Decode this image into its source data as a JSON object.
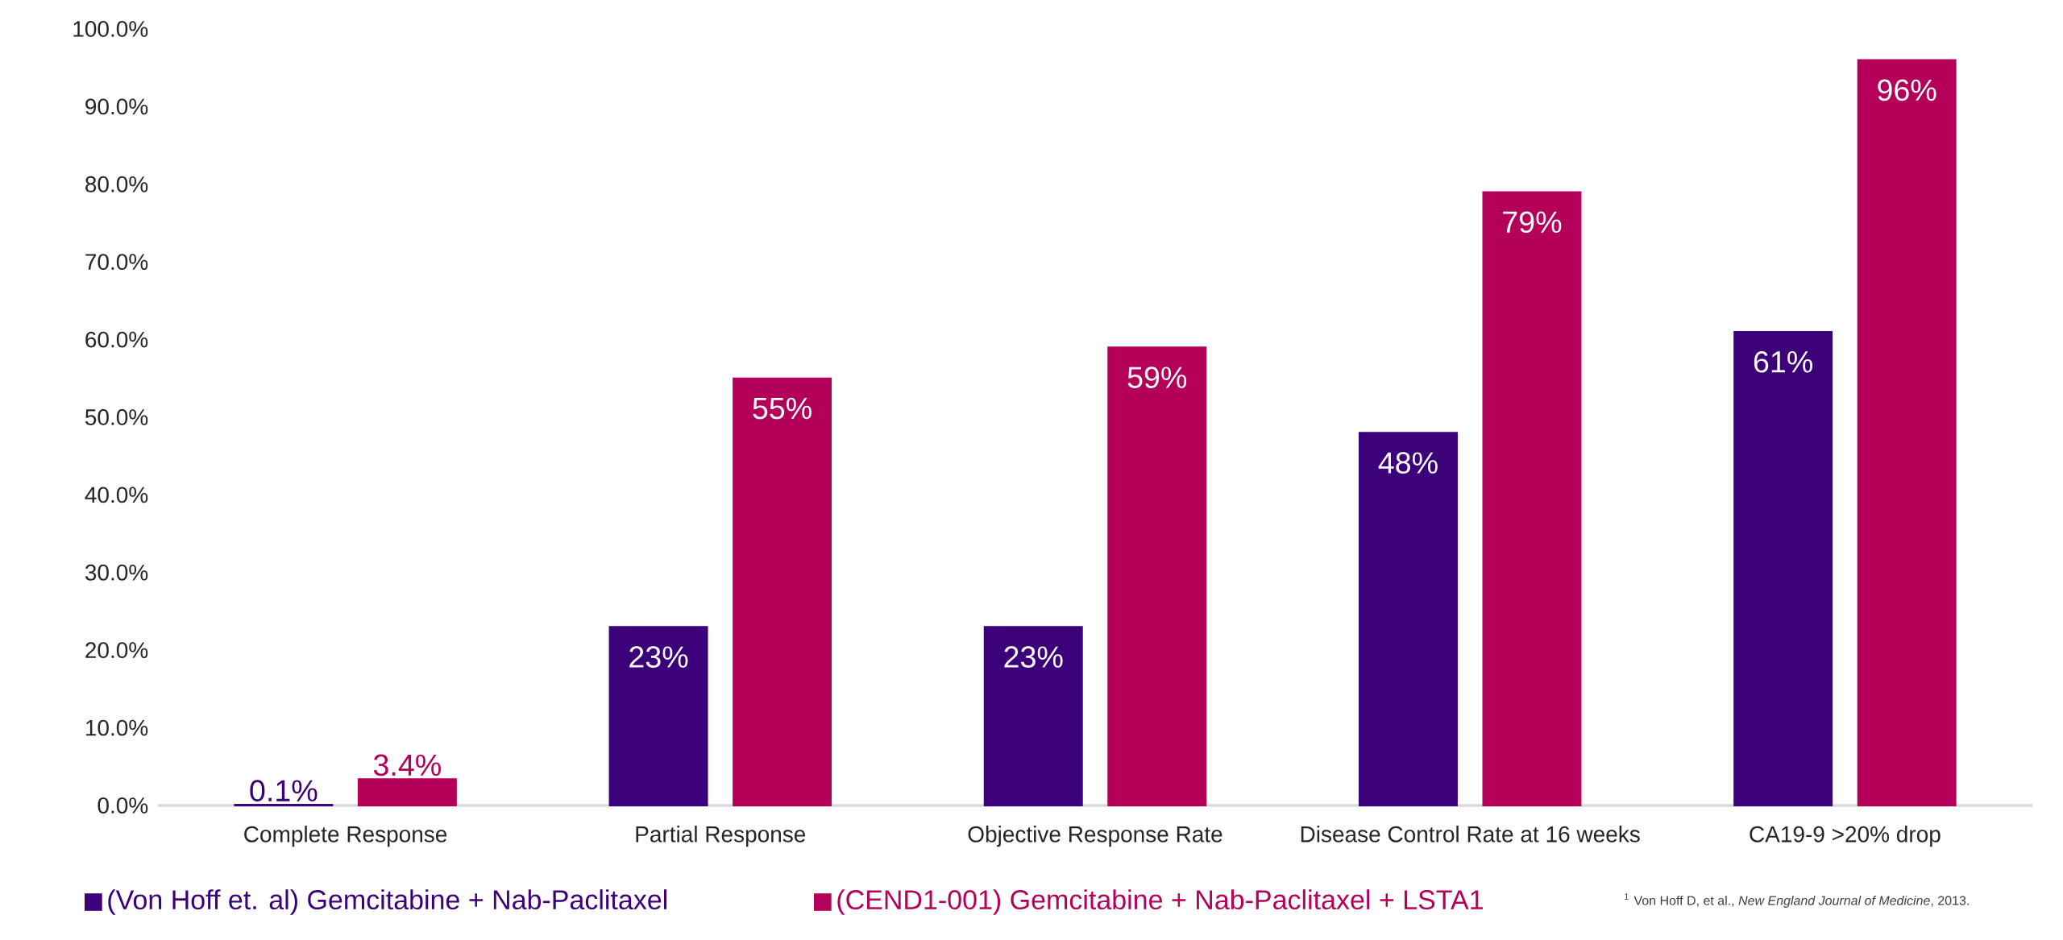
{
  "chart_data": {
    "type": "bar",
    "categories": [
      "Complete Response",
      "Partial Response",
      "Objective Response Rate",
      "Disease Control Rate at 16 weeks",
      "CA19-9 >20% drop"
    ],
    "series": [
      {
        "name": "(Von Hoff et. al) Gemcitabine + Nab-Paclitaxel",
        "color": "#3c007a",
        "values": [
          0.1,
          23,
          23,
          48,
          61
        ],
        "value_labels": [
          "0.1%",
          "23%",
          "23%",
          "48%",
          "61%"
        ]
      },
      {
        "name": "(CEND1-001) Gemcitabine + Nab-Paclitaxel + LSTA1",
        "color": "#b5005a",
        "values": [
          3.4,
          55,
          59,
          79,
          96
        ],
        "value_labels": [
          "3.4%",
          "55%",
          "59%",
          "79%",
          "96%"
        ]
      }
    ],
    "ylim": [
      0,
      100
    ],
    "yticks": [
      {
        "value": 0,
        "label": "0.0%"
      },
      {
        "value": 10,
        "label": "10.0%"
      },
      {
        "value": 20,
        "label": "20.0%"
      },
      {
        "value": 30,
        "label": "30.0%"
      },
      {
        "value": 40,
        "label": "40.0%"
      },
      {
        "value": 50,
        "label": "50.0%"
      },
      {
        "value": 60,
        "label": "60.0%"
      },
      {
        "value": 70,
        "label": "70.0%"
      },
      {
        "value": 80,
        "label": "80.0%"
      },
      {
        "value": 90,
        "label": "90.0%"
      },
      {
        "value": 100,
        "label": "100.0%"
      }
    ],
    "legend": "bottom",
    "annotations": [
      "$^{1}$ Von Hoff D, et al., *New England Journal of Medicine*, 2013."
    ]
  }
}
